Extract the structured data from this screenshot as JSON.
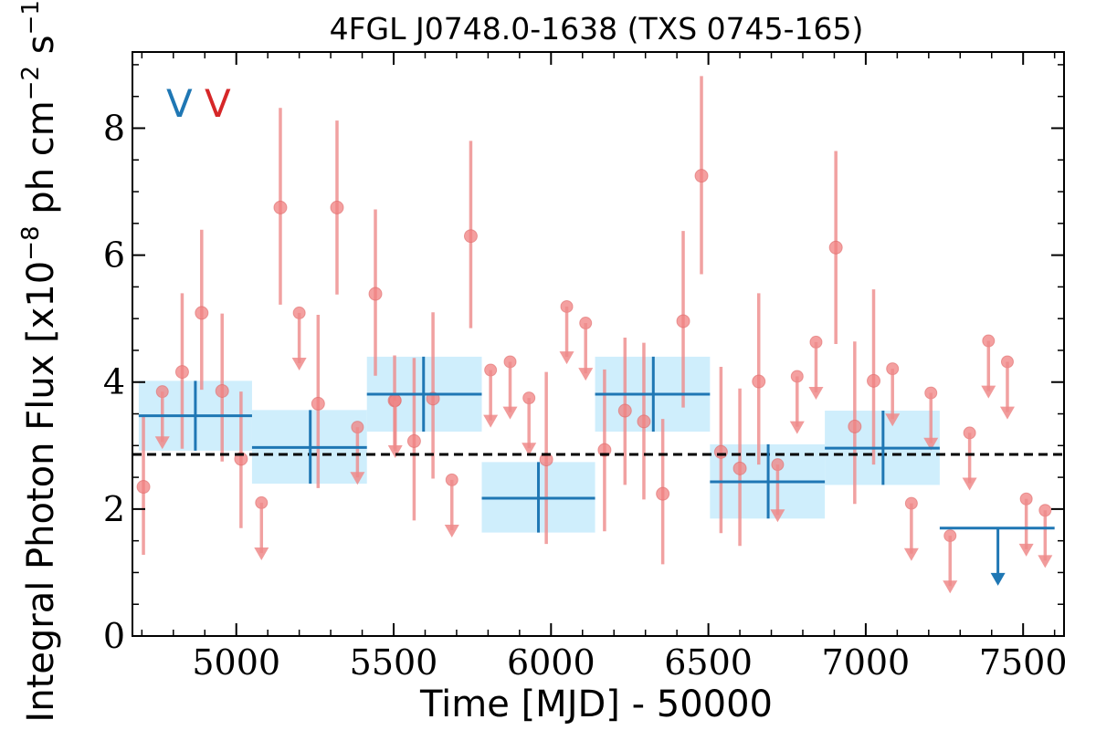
{
  "chart_data": {
    "type": "scatter",
    "title": "4FGL J0748.0-1638 (TXS 0745-165)",
    "xlabel": "Time [MJD] - 50000",
    "ylabel": "Integral Photon Flux [x10",
    "ylabel_exp1": "−8",
    "ylabel_mid": " ph cm",
    "ylabel_exp2": "−2",
    "ylabel_mid2": " s",
    "ylabel_exp3": "−1",
    "ylabel_end": "]",
    "xlim": [
      4670,
      7630
    ],
    "ylim": [
      0,
      9.2
    ],
    "xticks": [
      "5000",
      "5500",
      "6000",
      "6500",
      "7000",
      "7500"
    ],
    "xtick_values": [
      5000,
      5500,
      6000,
      6500,
      7000,
      7500
    ],
    "yticks": [
      "0",
      "2",
      "4",
      "6",
      "8"
    ],
    "ytick_values": [
      0,
      2,
      4,
      6,
      8
    ],
    "mean_flux": 2.86,
    "legend": [
      {
        "label": "V",
        "color": "#1f77b4"
      },
      {
        "label": "V",
        "color": "#d62728"
      }
    ],
    "colors": {
      "fine": "#ee8a8a",
      "coarse": "#1f77b4",
      "band": "#cfeefc"
    },
    "fine_points": [
      {
        "x": 4705,
        "y": 2.35,
        "lo": 1.28,
        "hi": 3.45
      },
      {
        "x": 4828,
        "y": 4.16,
        "lo": 2.95,
        "hi": 5.4
      },
      {
        "x": 4890,
        "y": 5.09,
        "lo": 3.88,
        "hi": 6.4
      },
      {
        "x": 4955,
        "y": 3.86,
        "lo": 2.75,
        "hi": 5.08
      },
      {
        "x": 5015,
        "y": 2.79,
        "lo": 1.7,
        "hi": 3.85
      },
      {
        "x": 5140,
        "y": 6.75,
        "lo": 5.22,
        "hi": 8.32
      },
      {
        "x": 5260,
        "y": 3.66,
        "lo": 2.33,
        "hi": 5.06
      },
      {
        "x": 5320,
        "y": 6.75,
        "lo": 5.38,
        "hi": 8.12
      },
      {
        "x": 5442,
        "y": 5.39,
        "lo": 4.1,
        "hi": 6.72
      },
      {
        "x": 5503,
        "y": 3.71,
        "lo": 2.95,
        "hi": 4.42
      },
      {
        "x": 5565,
        "y": 3.07,
        "lo": 1.82,
        "hi": 4.38
      },
      {
        "x": 5625,
        "y": 3.74,
        "lo": 2.48,
        "hi": 5.1
      },
      {
        "x": 5745,
        "y": 6.3,
        "lo": 4.85,
        "hi": 7.8
      },
      {
        "x": 5985,
        "y": 2.78,
        "lo": 1.45,
        "hi": 4.16
      },
      {
        "x": 6170,
        "y": 2.93,
        "lo": 1.65,
        "hi": 4.2
      },
      {
        "x": 6235,
        "y": 3.55,
        "lo": 2.38,
        "hi": 4.7
      },
      {
        "x": 6295,
        "y": 3.38,
        "lo": 2.15,
        "hi": 4.62
      },
      {
        "x": 6355,
        "y": 2.24,
        "lo": 1.13,
        "hi": 3.42
      },
      {
        "x": 6420,
        "y": 4.96,
        "lo": 3.6,
        "hi": 6.38
      },
      {
        "x": 6478,
        "y": 7.25,
        "lo": 5.7,
        "hi": 8.82
      },
      {
        "x": 6540,
        "y": 2.9,
        "lo": 1.62,
        "hi": 4.24
      },
      {
        "x": 6600,
        "y": 2.64,
        "lo": 1.42,
        "hi": 3.9
      },
      {
        "x": 6660,
        "y": 4.01,
        "lo": 2.7,
        "hi": 5.4
      },
      {
        "x": 6905,
        "y": 6.12,
        "lo": 4.6,
        "hi": 7.64
      },
      {
        "x": 6965,
        "y": 3.3,
        "lo": 2.08,
        "hi": 4.64
      },
      {
        "x": 7025,
        "y": 4.02,
        "lo": 2.7,
        "hi": 5.46
      }
    ],
    "fine_upper_limits": [
      {
        "x": 4765,
        "y": 3.85
      },
      {
        "x": 5080,
        "y": 2.1
      },
      {
        "x": 5200,
        "y": 5.09
      },
      {
        "x": 5385,
        "y": 3.29
      },
      {
        "x": 5505,
        "y": 3.71
      },
      {
        "x": 5685,
        "y": 2.46
      },
      {
        "x": 5808,
        "y": 4.19
      },
      {
        "x": 5870,
        "y": 4.32
      },
      {
        "x": 5930,
        "y": 3.75
      },
      {
        "x": 6050,
        "y": 5.19
      },
      {
        "x": 6110,
        "y": 4.93
      },
      {
        "x": 6720,
        "y": 2.7
      },
      {
        "x": 6782,
        "y": 4.09
      },
      {
        "x": 6842,
        "y": 4.63
      },
      {
        "x": 7085,
        "y": 4.21
      },
      {
        "x": 7207,
        "y": 3.83
      },
      {
        "x": 7145,
        "y": 2.09
      },
      {
        "x": 7268,
        "y": 1.58
      },
      {
        "x": 7330,
        "y": 3.2
      },
      {
        "x": 7390,
        "y": 4.65
      },
      {
        "x": 7450,
        "y": 4.32
      },
      {
        "x": 7510,
        "y": 2.16
      },
      {
        "x": 7570,
        "y": 1.98
      }
    ],
    "coarse_bins": [
      {
        "x": 4870,
        "x0": 4690,
        "x1": 5050,
        "y": 3.47,
        "lo": 2.92,
        "hi": 4.02
      },
      {
        "x": 5235,
        "x0": 5050,
        "x1": 5415,
        "y": 2.97,
        "lo": 2.4,
        "hi": 3.56
      },
      {
        "x": 5595,
        "x0": 5415,
        "x1": 5780,
        "y": 3.81,
        "lo": 3.22,
        "hi": 4.4
      },
      {
        "x": 5960,
        "x0": 5780,
        "x1": 6140,
        "y": 2.17,
        "lo": 1.63,
        "hi": 2.74
      },
      {
        "x": 6325,
        "x0": 6140,
        "x1": 6505,
        "y": 3.81,
        "lo": 3.22,
        "hi": 4.4
      },
      {
        "x": 6690,
        "x0": 6505,
        "x1": 6870,
        "y": 2.43,
        "lo": 1.85,
        "hi": 3.02
      },
      {
        "x": 7055,
        "x0": 6870,
        "x1": 7235,
        "y": 2.96,
        "lo": 2.38,
        "hi": 3.55
      }
    ],
    "coarse_upper_limits": [
      {
        "x": 7420,
        "x0": 7235,
        "x1": 7600,
        "y": 1.7
      }
    ]
  }
}
